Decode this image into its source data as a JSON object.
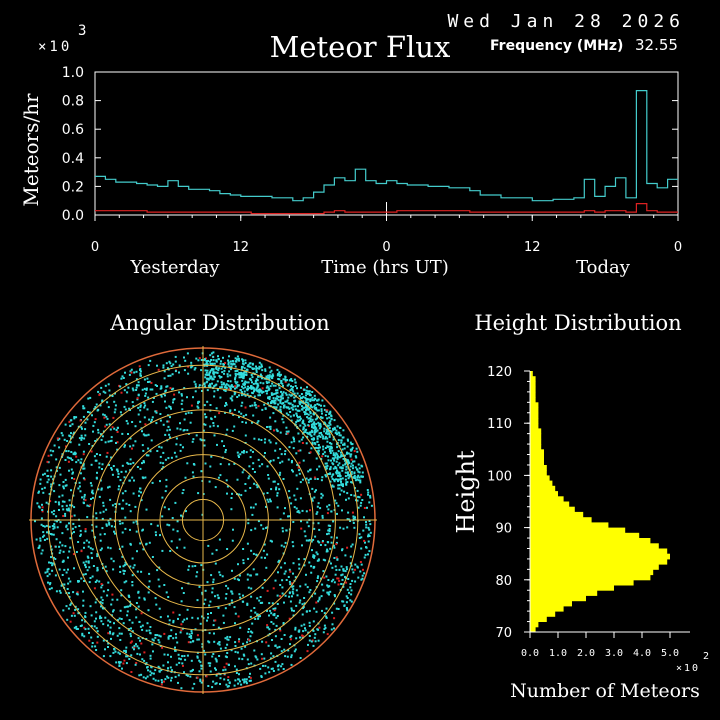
{
  "header": {
    "date": "Wed Jan 28 2026",
    "title": "Meteor Flux",
    "frequency_label": "Frequency (MHz)",
    "frequency_value": "32.55",
    "flux_multiplier": "×10",
    "flux_exponent": "3"
  },
  "colors": {
    "background": "#000000",
    "axes": "#ffffff",
    "flux_total": "#44cccc",
    "flux_red": "#dd2222",
    "grid_rings": "#e8b84a",
    "angular_dots": "#33dddd",
    "angular_red": "#dd2222",
    "histogram": "#ffff00"
  },
  "chart_data": [
    {
      "type": "line",
      "name": "flux",
      "ylabel": "Meteors/hr",
      "ylim": [
        0,
        1.0
      ],
      "yticks": [
        "0.0",
        "0.2",
        "0.4",
        "0.6",
        "0.8",
        "1.0"
      ],
      "xlim": [
        0,
        48
      ],
      "xticks": [
        {
          "value": 0,
          "label": "0"
        },
        {
          "value": 12,
          "label": "12"
        },
        {
          "value": 24,
          "label": "0"
        },
        {
          "value": 36,
          "label": "12"
        },
        {
          "value": 48,
          "label": "0"
        }
      ],
      "xgroup_labels": [
        "Yesterday",
        "Time (hrs UT)",
        "Today"
      ],
      "step_series": [
        {
          "color_key": "flux_total",
          "values": [
            0.27,
            0.25,
            0.23,
            0.23,
            0.22,
            0.21,
            0.2,
            0.24,
            0.2,
            0.18,
            0.18,
            0.17,
            0.15,
            0.14,
            0.13,
            0.13,
            0.13,
            0.12,
            0.12,
            0.1,
            0.12,
            0.16,
            0.21,
            0.26,
            0.24,
            0.32,
            0.24,
            0.22,
            0.24,
            0.22,
            0.21,
            0.21,
            0.2,
            0.2,
            0.19,
            0.19,
            0.17,
            0.14,
            0.14,
            0.12,
            0.12,
            0.12,
            0.1,
            0.1,
            0.11,
            0.11,
            0.12,
            0.25,
            0.13,
            0.2,
            0.26,
            0.12,
            0.87,
            0.22,
            0.19,
            0.25
          ]
        },
        {
          "color_key": "flux_red",
          "values": [
            0.03,
            0.03,
            0.03,
            0.03,
            0.03,
            0.02,
            0.02,
            0.02,
            0.02,
            0.02,
            0.02,
            0.02,
            0.02,
            0.02,
            0.02,
            0.01,
            0.01,
            0.01,
            0.01,
            0.01,
            0.01,
            0.01,
            0.02,
            0.03,
            0.02,
            0.02,
            0.02,
            0.02,
            0.02,
            0.03,
            0.03,
            0.03,
            0.03,
            0.03,
            0.03,
            0.03,
            0.02,
            0.02,
            0.02,
            0.02,
            0.02,
            0.02,
            0.02,
            0.02,
            0.02,
            0.02,
            0.02,
            0.03,
            0.02,
            0.03,
            0.03,
            0.02,
            0.08,
            0.03,
            0.02,
            0.02
          ]
        }
      ]
    },
    {
      "type": "scatter",
      "name": "angular",
      "title": "Angular Distribution",
      "points": [
        [
          0.03,
          0.11
        ],
        [
          -0.05,
          0.03
        ],
        [
          -0.14,
          0.07
        ],
        [
          0.1,
          -0.18
        ],
        [
          0.06,
          0.02
        ],
        [
          0.13,
          0.09
        ],
        [
          -0.09,
          -0.14
        ],
        [
          0.15,
          0.03
        ],
        [
          -0.16,
          0.04
        ],
        [
          0.11,
          -0.07
        ]
      ],
      "red_points": [
        [
          -0.55,
          0.42
        ],
        [
          0.25,
          -0.62
        ]
      ]
    },
    {
      "type": "bar",
      "name": "height",
      "title": "Height Distribution",
      "ylabel": "Height",
      "xlabel": "Number of Meteors",
      "xlim": [
        0,
        5.0
      ],
      "xticks": [
        "0.0",
        "1.0",
        "2.0",
        "3.0",
        "4.0",
        "5.0"
      ],
      "x_multiplier": "×10",
      "x_exponent": "2",
      "ylim": [
        70,
        120
      ],
      "yticks": [
        "70",
        "80",
        "90",
        "100",
        "110",
        "120"
      ],
      "heights": [
        71,
        72,
        73,
        74,
        75,
        76,
        77,
        78,
        79,
        80,
        81,
        82,
        83,
        84,
        85,
        86,
        87,
        88,
        89,
        90,
        91,
        92,
        93,
        94,
        95,
        96,
        97,
        98,
        99,
        100,
        101,
        102,
        103,
        104,
        105,
        106,
        107,
        108,
        109,
        110,
        111,
        112,
        113,
        114,
        115,
        116,
        117,
        118,
        119,
        120
      ],
      "counts": [
        0.2,
        0.3,
        0.6,
        0.9,
        1.2,
        1.5,
        2.0,
        2.4,
        3.0,
        3.7,
        4.3,
        4.4,
        4.6,
        4.9,
        5.0,
        4.9,
        4.6,
        4.3,
        3.9,
        3.4,
        2.8,
        2.2,
        1.9,
        1.6,
        1.4,
        1.2,
        1.0,
        0.9,
        0.8,
        0.7,
        0.6,
        0.6,
        0.5,
        0.5,
        0.5,
        0.4,
        0.4,
        0.4,
        0.4,
        0.3,
        0.3,
        0.3,
        0.3,
        0.3,
        0.2,
        0.2,
        0.2,
        0.2,
        0.2,
        0.1
      ]
    }
  ]
}
